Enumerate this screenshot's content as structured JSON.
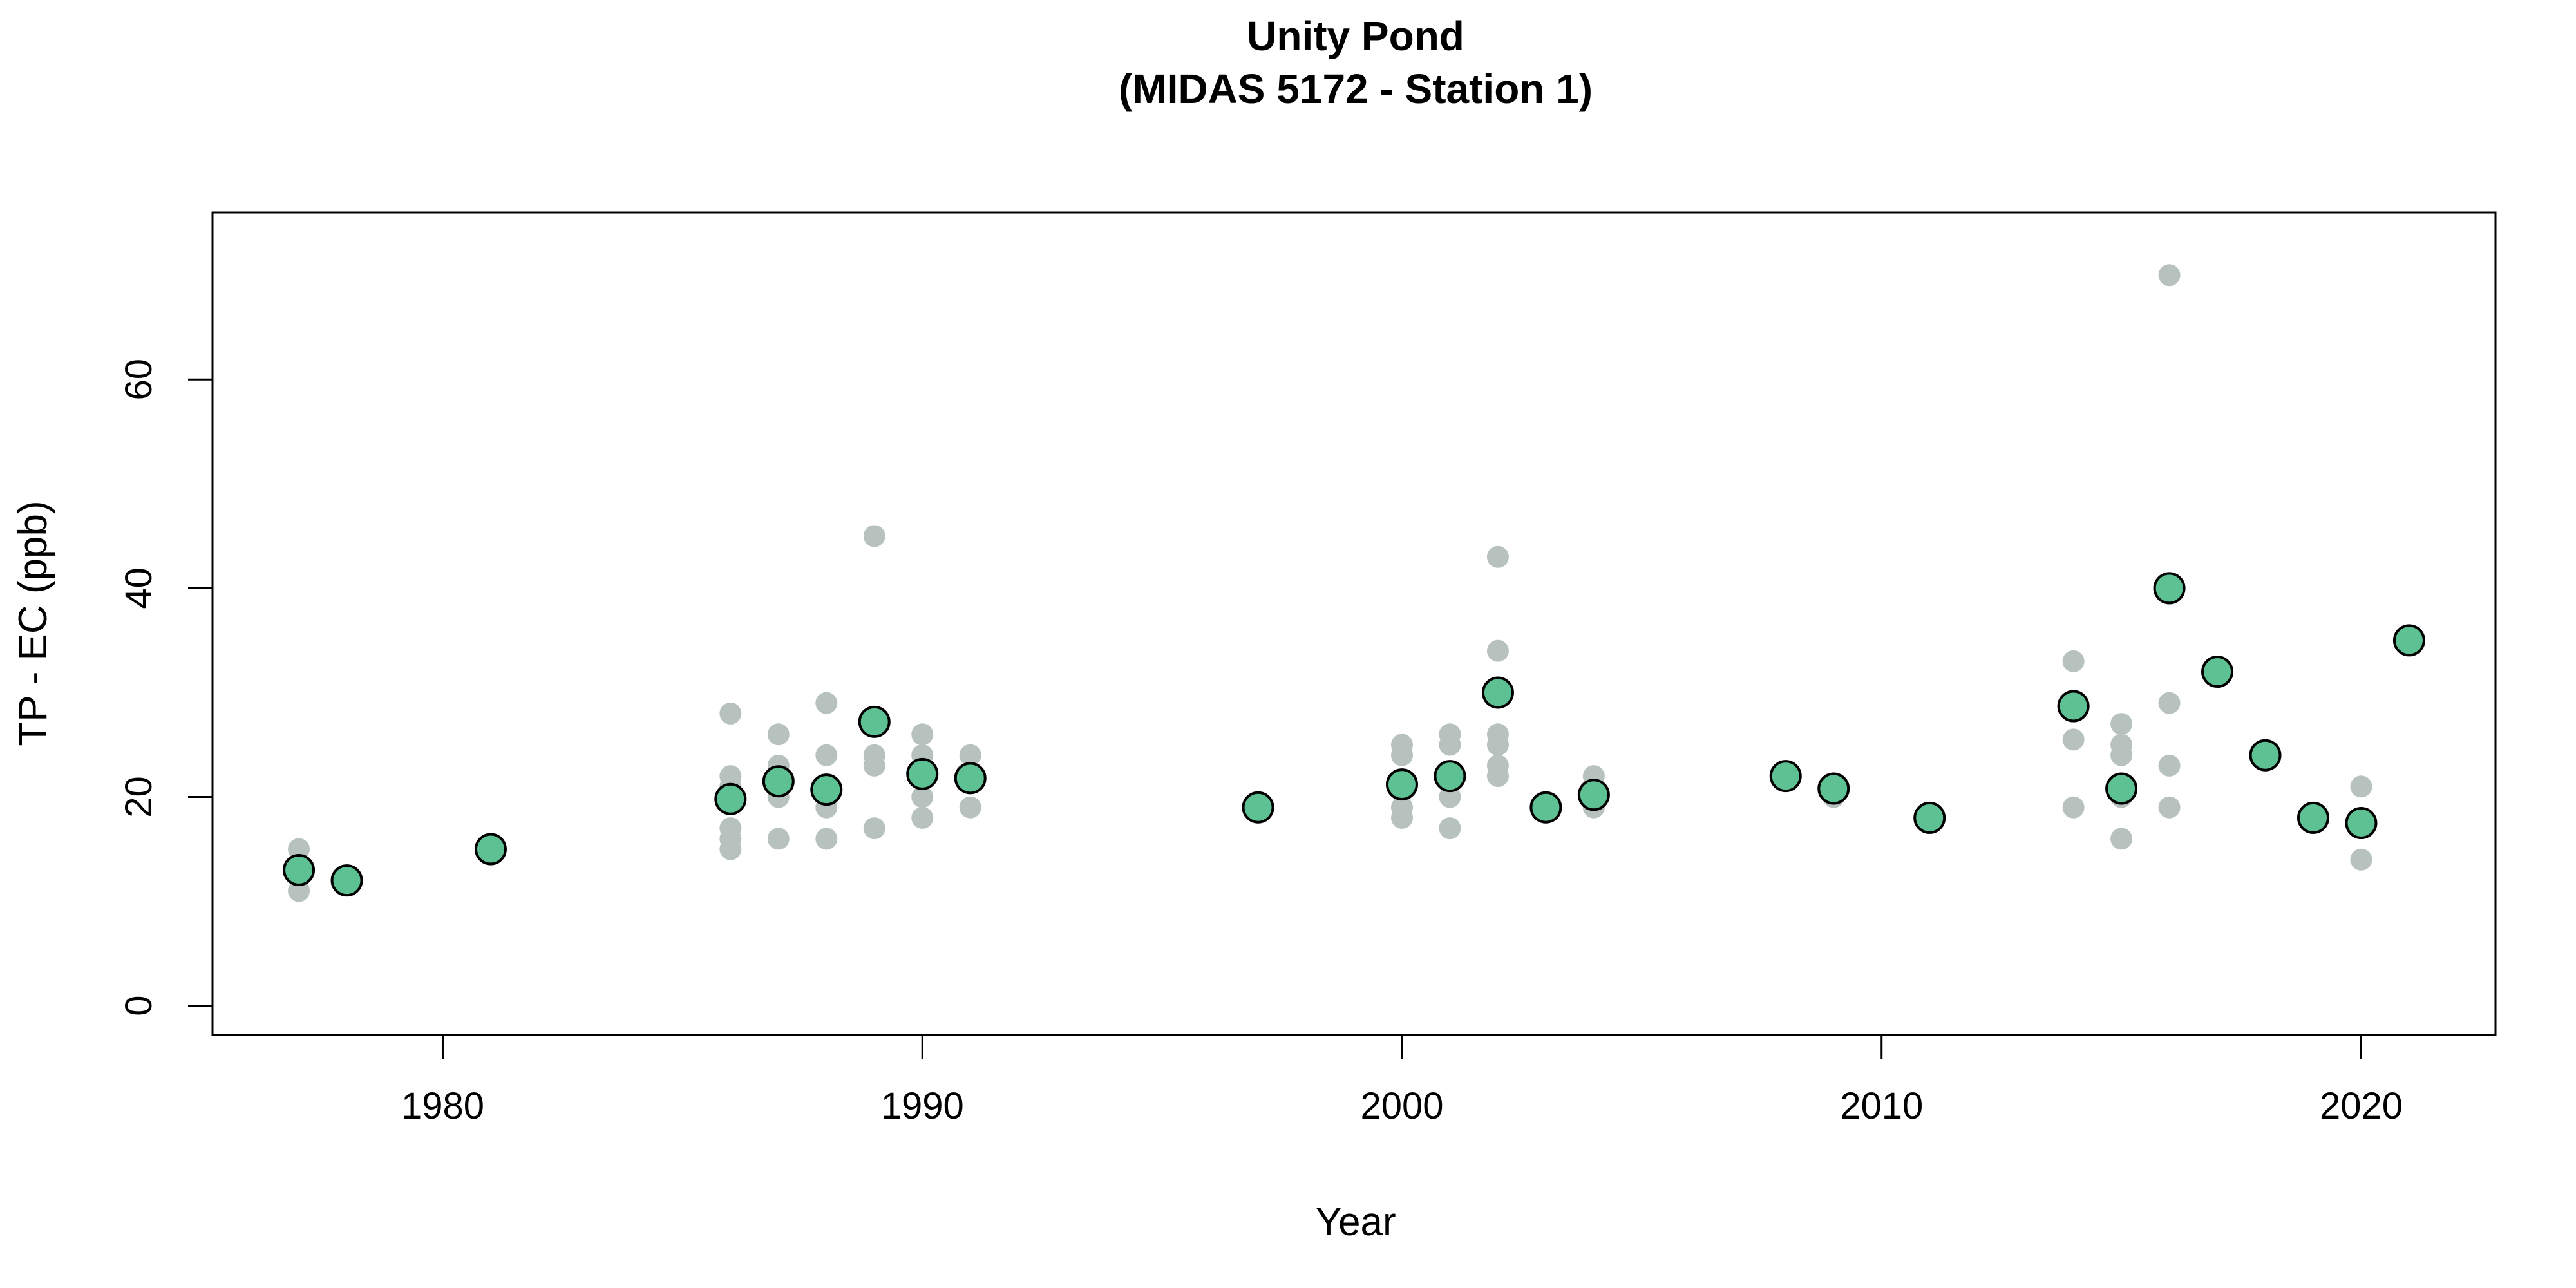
{
  "chart_data": {
    "type": "scatter",
    "title": "Unity Pond",
    "subtitle": "(MIDAS 5172 - Station 1)",
    "xlabel": "Year",
    "ylabel": "TP - EC (ppb)",
    "xlim": [
      1975.2,
      2022.8
    ],
    "ylim": [
      -2.8,
      76
    ],
    "xticks": [
      1980,
      1990,
      2000,
      2010,
      2020
    ],
    "yticks": [
      0,
      20,
      40,
      60
    ],
    "grid": false,
    "colors": {
      "individual": "#b7c2bf",
      "annual_mean": "#5dc194",
      "annual_mean_outline": "#000000",
      "axis": "#000000"
    },
    "series": [
      {
        "values": [
          {
            "x": 1977,
            "y": 15
          },
          {
            "x": 1977,
            "y": 11
          },
          {
            "x": 1986,
            "y": 28
          },
          {
            "x": 1986,
            "y": 22
          },
          {
            "x": 1986,
            "y": 21
          },
          {
            "x": 1986,
            "y": 17
          },
          {
            "x": 1986,
            "y": 16
          },
          {
            "x": 1986,
            "y": 15
          },
          {
            "x": 1987,
            "y": 26
          },
          {
            "x": 1987,
            "y": 23
          },
          {
            "x": 1987,
            "y": 20
          },
          {
            "x": 1987,
            "y": 16
          },
          {
            "x": 1988,
            "y": 29
          },
          {
            "x": 1988,
            "y": 24
          },
          {
            "x": 1988,
            "y": 19
          },
          {
            "x": 1988,
            "y": 16
          },
          {
            "x": 1989,
            "y": 45
          },
          {
            "x": 1989,
            "y": 24
          },
          {
            "x": 1989,
            "y": 23
          },
          {
            "x": 1989,
            "y": 17
          },
          {
            "x": 1990,
            "y": 26
          },
          {
            "x": 1990,
            "y": 24
          },
          {
            "x": 1990,
            "y": 20
          },
          {
            "x": 1990,
            "y": 18
          },
          {
            "x": 1991,
            "y": 24
          },
          {
            "x": 1991,
            "y": 19
          },
          {
            "x": 2000,
            "y": 25
          },
          {
            "x": 2000,
            "y": 24
          },
          {
            "x": 2000,
            "y": 21
          },
          {
            "x": 2000,
            "y": 19
          },
          {
            "x": 2000,
            "y": 18
          },
          {
            "x": 2001,
            "y": 26
          },
          {
            "x": 2001,
            "y": 25
          },
          {
            "x": 2001,
            "y": 20
          },
          {
            "x": 2001,
            "y": 17
          },
          {
            "x": 2002,
            "y": 43
          },
          {
            "x": 2002,
            "y": 34
          },
          {
            "x": 2002,
            "y": 26
          },
          {
            "x": 2002,
            "y": 25
          },
          {
            "x": 2002,
            "y": 23
          },
          {
            "x": 2002,
            "y": 22
          },
          {
            "x": 2004,
            "y": 22
          },
          {
            "x": 2004,
            "y": 19
          },
          {
            "x": 2009,
            "y": 20
          },
          {
            "x": 2014,
            "y": 33
          },
          {
            "x": 2014,
            "y": 25.5
          },
          {
            "x": 2014,
            "y": 19
          },
          {
            "x": 2015,
            "y": 27
          },
          {
            "x": 2015,
            "y": 25
          },
          {
            "x": 2015,
            "y": 24
          },
          {
            "x": 2015,
            "y": 20
          },
          {
            "x": 2015,
            "y": 16
          },
          {
            "x": 2016,
            "y": 70
          },
          {
            "x": 2016,
            "y": 29
          },
          {
            "x": 2016,
            "y": 23
          },
          {
            "x": 2016,
            "y": 19
          },
          {
            "x": 2020,
            "y": 21
          },
          {
            "x": 2020,
            "y": 14
          }
        ]
      },
      {
        "values": [
          {
            "x": 1977,
            "y": 13
          },
          {
            "x": 1978,
            "y": 12
          },
          {
            "x": 1981,
            "y": 15
          },
          {
            "x": 1986,
            "y": 19.8
          },
          {
            "x": 1987,
            "y": 21.5
          },
          {
            "x": 1988,
            "y": 20.7
          },
          {
            "x": 1989,
            "y": 27.2
          },
          {
            "x": 1990,
            "y": 22.2
          },
          {
            "x": 1991,
            "y": 21.8
          },
          {
            "x": 1997,
            "y": 19
          },
          {
            "x": 2000,
            "y": 21.2
          },
          {
            "x": 2001,
            "y": 22
          },
          {
            "x": 2002,
            "y": 30
          },
          {
            "x": 2003,
            "y": 19
          },
          {
            "x": 2004,
            "y": 20.2
          },
          {
            "x": 2008,
            "y": 22
          },
          {
            "x": 2009,
            "y": 20.8
          },
          {
            "x": 2011,
            "y": 18
          },
          {
            "x": 2014,
            "y": 28.7
          },
          {
            "x": 2015,
            "y": 20.8
          },
          {
            "x": 2016,
            "y": 40
          },
          {
            "x": 2017,
            "y": 32
          },
          {
            "x": 2018,
            "y": 24
          },
          {
            "x": 2019,
            "y": 18
          },
          {
            "x": 2020,
            "y": 17.5
          },
          {
            "x": 2021,
            "y": 35
          }
        ]
      }
    ]
  }
}
